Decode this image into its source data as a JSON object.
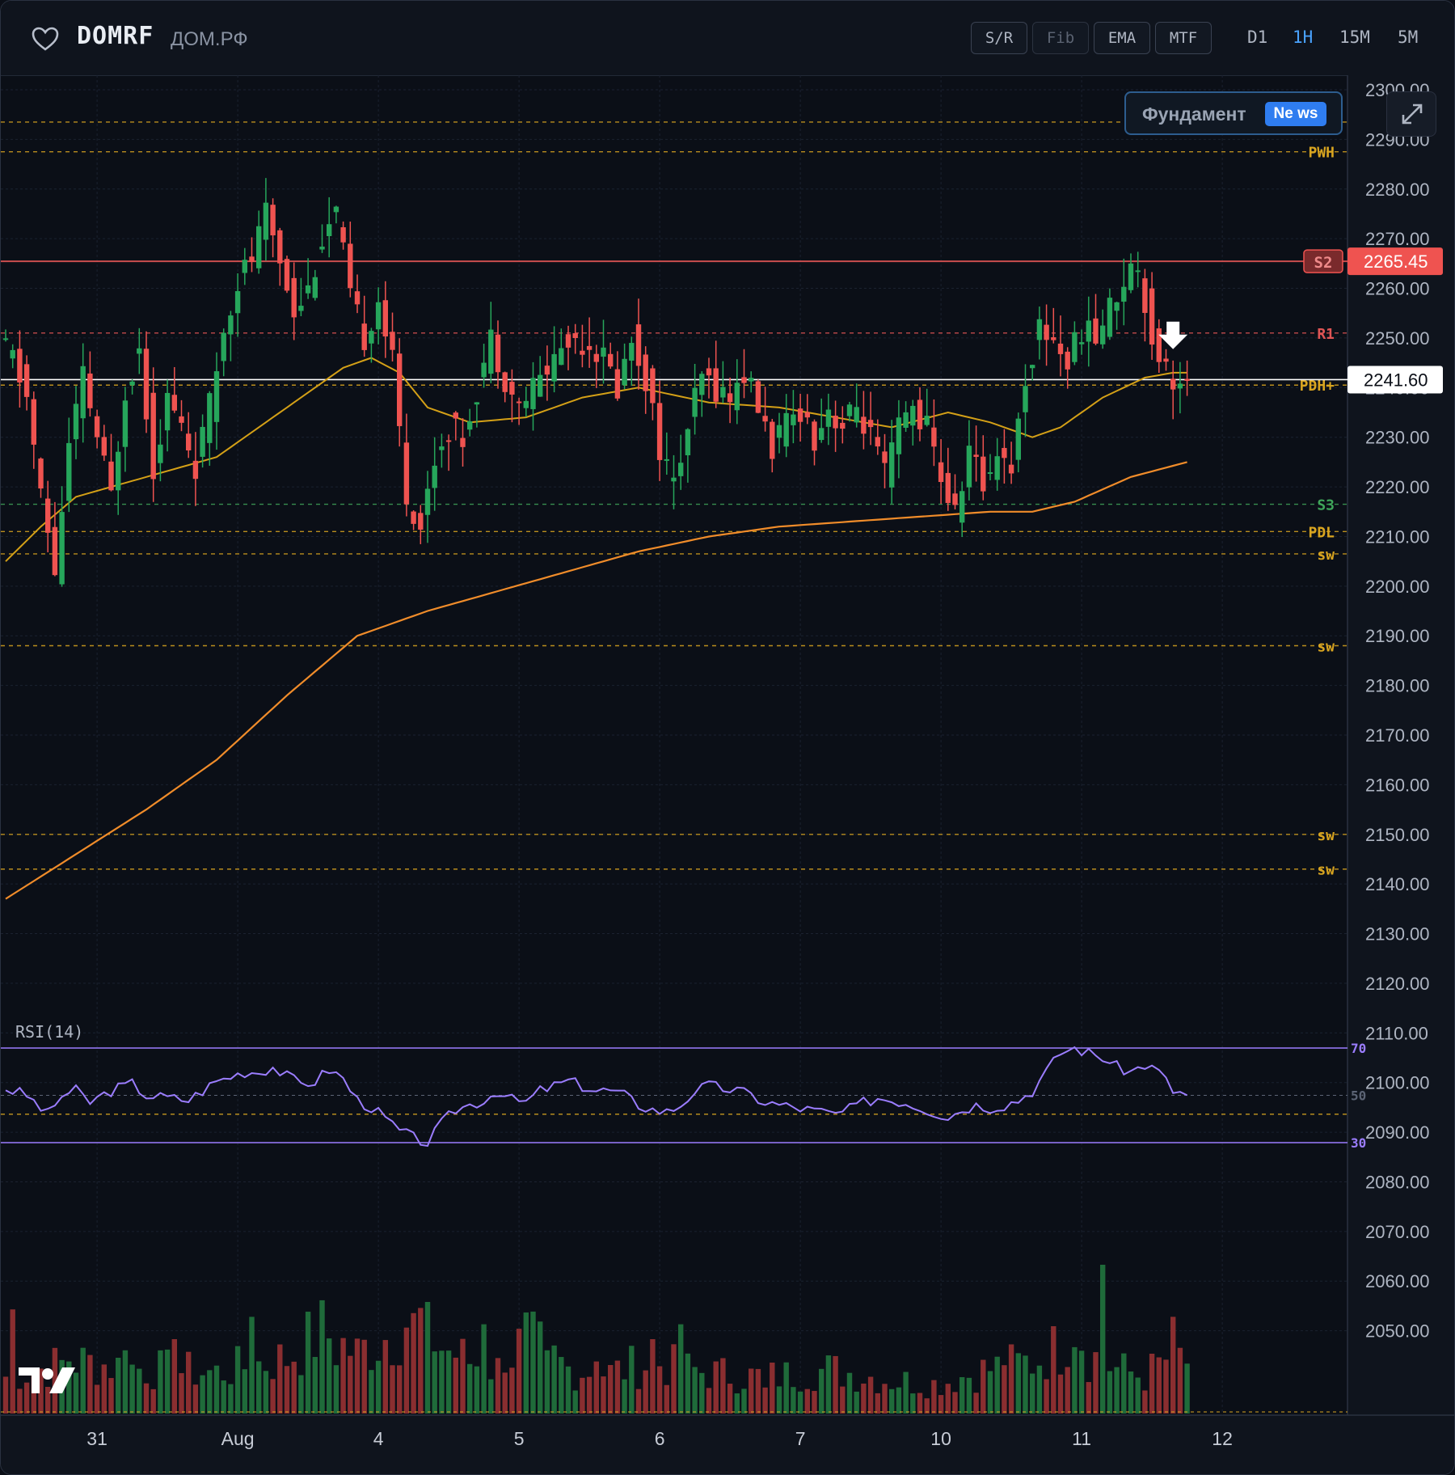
{
  "header": {
    "ticker": "DOMRF",
    "company": "ДОМ.РФ",
    "tools": [
      {
        "label": "S/R",
        "active": true
      },
      {
        "label": "Fib",
        "active": false
      },
      {
        "label": "EMA",
        "active": true
      },
      {
        "label": "MTF",
        "active": true
      }
    ],
    "timeframes": [
      {
        "label": "D1",
        "active": false
      },
      {
        "label": "1H",
        "active": true
      },
      {
        "label": "15M",
        "active": false
      },
      {
        "label": "5M",
        "active": false
      }
    ]
  },
  "overlay": {
    "fundamental_label": "Фундамент",
    "news_badge": "Ne ws"
  },
  "colors": {
    "up": "#26a65b",
    "down": "#ef5350",
    "ema_fast": "#d4a017",
    "ema_slow": "#f08c2a",
    "rsi": "#9b7dff",
    "level_gold": "#d9a520",
    "level_red": "#e05555",
    "level_green": "#3fa65a"
  },
  "chart_data": {
    "type": "candlestick",
    "price_axis": {
      "min": 2040,
      "max": 2300,
      "step": 10,
      "ticks": [
        "2300.00",
        "2290.00",
        "2280.00",
        "2270.00",
        "2260.00",
        "2250.00",
        "2240.00",
        "2230.00",
        "2220.00",
        "2210.00",
        "2200.00",
        "2190.00",
        "2180.00",
        "2170.00",
        "2160.00",
        "2150.00",
        "2140.00",
        "2130.00",
        "2120.00",
        "2110.00",
        "2100.00",
        "2090.00",
        "2080.00",
        "2070.00",
        "2060.00",
        "2050.00"
      ]
    },
    "x_labels": [
      {
        "label": "31",
        "bar": 13
      },
      {
        "label": "Aug",
        "bar": 33
      },
      {
        "label": "4",
        "bar": 53
      },
      {
        "label": "5",
        "bar": 73
      },
      {
        "label": "6",
        "bar": 93
      },
      {
        "label": "7",
        "bar": 113
      },
      {
        "label": "10",
        "bar": 133
      },
      {
        "label": "11",
        "bar": 153
      },
      {
        "label": "12",
        "bar": 173
      }
    ],
    "bar_count": 180,
    "price_labels": [
      {
        "label": "S2",
        "value": 2265.45,
        "color": "#ef5350"
      },
      {
        "label": "2265.45",
        "value": 2265.45,
        "color": "#ef5350"
      },
      {
        "label": "2241.60",
        "value": 2241.6,
        "color": "#ffffff"
      }
    ],
    "levels": [
      {
        "name": "",
        "value": 2293.5,
        "color": "#d9a520"
      },
      {
        "name": "PWH",
        "value": 2287.5,
        "color": "#d9a520"
      },
      {
        "name": "S2",
        "value": 2265.45,
        "color": "#e05555",
        "solid": true
      },
      {
        "name": "R1",
        "value": 2251.0,
        "color": "#e05555"
      },
      {
        "name": "PDH+",
        "value": 2240.5,
        "color": "#d9a520"
      },
      {
        "name": "S3",
        "value": 2216.5,
        "color": "#3fa65a"
      },
      {
        "name": "PDL",
        "value": 2211.0,
        "color": "#d9a520"
      },
      {
        "name": "sw",
        "value": 2206.5,
        "color": "#d9a520"
      },
      {
        "name": "sw",
        "value": 2188.0,
        "color": "#d9a520"
      },
      {
        "name": "sw",
        "value": 2150.0,
        "color": "#d9a520"
      },
      {
        "name": "sw",
        "value": 2143.0,
        "color": "#d9a520"
      }
    ],
    "price_anchors": [
      [
        0,
        2249
      ],
      [
        2,
        2246
      ],
      [
        4,
        2238
      ],
      [
        6,
        2218
      ],
      [
        8,
        2203
      ],
      [
        10,
        2228
      ],
      [
        12,
        2242
      ],
      [
        14,
        2230
      ],
      [
        16,
        2218
      ],
      [
        18,
        2240
      ],
      [
        20,
        2248
      ],
      [
        22,
        2224
      ],
      [
        24,
        2238
      ],
      [
        26,
        2232
      ],
      [
        28,
        2224
      ],
      [
        30,
        2236
      ],
      [
        32,
        2252
      ],
      [
        34,
        2262
      ],
      [
        36,
        2266
      ],
      [
        38,
        2275
      ],
      [
        40,
        2266
      ],
      [
        42,
        2256
      ],
      [
        44,
        2260
      ],
      [
        46,
        2270
      ],
      [
        48,
        2275
      ],
      [
        50,
        2258
      ],
      [
        52,
        2250
      ],
      [
        54,
        2258
      ],
      [
        56,
        2245
      ],
      [
        58,
        2218
      ],
      [
        60,
        2212
      ],
      [
        62,
        2226
      ],
      [
        64,
        2232
      ],
      [
        66,
        2230
      ],
      [
        68,
        2240
      ],
      [
        70,
        2250
      ],
      [
        72,
        2242
      ],
      [
        74,
        2236
      ],
      [
        76,
        2240
      ],
      [
        78,
        2244
      ],
      [
        80,
        2248
      ],
      [
        82,
        2250
      ],
      [
        84,
        2249
      ],
      [
        86,
        2246
      ],
      [
        88,
        2240
      ],
      [
        90,
        2250
      ],
      [
        92,
        2242
      ],
      [
        94,
        2228
      ],
      [
        96,
        2220
      ],
      [
        98,
        2232
      ],
      [
        100,
        2242
      ],
      [
        102,
        2240
      ],
      [
        104,
        2238
      ],
      [
        106,
        2243
      ],
      [
        108,
        2236
      ],
      [
        110,
        2228
      ],
      [
        112,
        2232
      ],
      [
        114,
        2236
      ],
      [
        116,
        2230
      ],
      [
        118,
        2236
      ],
      [
        120,
        2232
      ],
      [
        122,
        2236
      ],
      [
        124,
        2230
      ],
      [
        126,
        2222
      ],
      [
        128,
        2232
      ],
      [
        130,
        2236
      ],
      [
        132,
        2232
      ],
      [
        134,
        2222
      ],
      [
        136,
        2214
      ],
      [
        138,
        2228
      ],
      [
        140,
        2220
      ],
      [
        142,
        2228
      ],
      [
        144,
        2224
      ],
      [
        146,
        2242
      ],
      [
        148,
        2252
      ],
      [
        150,
        2250
      ],
      [
        152,
        2245
      ],
      [
        154,
        2252
      ],
      [
        156,
        2250
      ],
      [
        158,
        2256
      ],
      [
        160,
        2262
      ],
      [
        162,
        2265
      ],
      [
        164,
        2250
      ],
      [
        166,
        2244
      ],
      [
        168,
        2240
      ]
    ],
    "ema_fast_anchors": [
      [
        0,
        2205
      ],
      [
        5,
        2212
      ],
      [
        10,
        2218
      ],
      [
        20,
        2222
      ],
      [
        30,
        2226
      ],
      [
        40,
        2236
      ],
      [
        48,
        2244
      ],
      [
        52,
        2246
      ],
      [
        56,
        2243
      ],
      [
        60,
        2236
      ],
      [
        66,
        2233
      ],
      [
        74,
        2234
      ],
      [
        82,
        2238
      ],
      [
        90,
        2240
      ],
      [
        100,
        2237
      ],
      [
        110,
        2236
      ],
      [
        118,
        2234
      ],
      [
        126,
        2232
      ],
      [
        134,
        2235
      ],
      [
        140,
        2233
      ],
      [
        146,
        2230
      ],
      [
        150,
        2232
      ],
      [
        156,
        2238
      ],
      [
        162,
        2242
      ],
      [
        166,
        2243
      ],
      [
        168,
        2243
      ]
    ],
    "ema_slow_anchors": [
      [
        0,
        2137
      ],
      [
        10,
        2146
      ],
      [
        20,
        2155
      ],
      [
        30,
        2165
      ],
      [
        40,
        2178
      ],
      [
        50,
        2190
      ],
      [
        56,
        2193
      ],
      [
        60,
        2195
      ],
      [
        70,
        2199
      ],
      [
        80,
        2203
      ],
      [
        90,
        2207
      ],
      [
        100,
        2210
      ],
      [
        110,
        2212
      ],
      [
        120,
        2213
      ],
      [
        130,
        2214
      ],
      [
        140,
        2215
      ],
      [
        146,
        2215
      ],
      [
        152,
        2217
      ],
      [
        160,
        2222
      ],
      [
        168,
        2225
      ]
    ],
    "rsi": {
      "label": "RSI(14)",
      "levels": [
        {
          "name": "70",
          "value": 70,
          "color": "#9b7dff"
        },
        {
          "name": "50",
          "value": 50,
          "color": "#5c6475"
        },
        {
          "name": "30",
          "value": 30,
          "color": "#9b7dff"
        }
      ],
      "extra_level": 42,
      "anchors": [
        [
          0,
          53
        ],
        [
          3,
          50
        ],
        [
          6,
          42
        ],
        [
          8,
          50
        ],
        [
          10,
          52
        ],
        [
          12,
          47
        ],
        [
          15,
          52
        ],
        [
          18,
          55
        ],
        [
          20,
          50
        ],
        [
          23,
          49
        ],
        [
          26,
          48
        ],
        [
          28,
          52
        ],
        [
          30,
          56
        ],
        [
          32,
          58
        ],
        [
          34,
          60
        ],
        [
          36,
          60
        ],
        [
          38,
          62
        ],
        [
          40,
          58
        ],
        [
          42,
          55
        ],
        [
          44,
          56
        ],
        [
          46,
          61
        ],
        [
          48,
          57
        ],
        [
          50,
          48
        ],
        [
          52,
          45
        ],
        [
          54,
          40
        ],
        [
          56,
          35
        ],
        [
          58,
          32
        ],
        [
          60,
          30
        ],
        [
          62,
          38
        ],
        [
          64,
          44
        ],
        [
          66,
          46
        ],
        [
          68,
          48
        ],
        [
          70,
          52
        ],
        [
          72,
          48
        ],
        [
          74,
          47
        ],
        [
          76,
          52
        ],
        [
          78,
          54
        ],
        [
          80,
          56
        ],
        [
          82,
          54
        ],
        [
          84,
          52
        ],
        [
          86,
          52
        ],
        [
          88,
          50
        ],
        [
          90,
          46
        ],
        [
          92,
          44
        ],
        [
          94,
          43
        ],
        [
          96,
          46
        ],
        [
          98,
          52
        ],
        [
          100,
          54
        ],
        [
          102,
          53
        ],
        [
          104,
          52
        ],
        [
          106,
          50
        ],
        [
          108,
          47
        ],
        [
          110,
          46
        ],
        [
          112,
          45
        ],
        [
          114,
          44
        ],
        [
          116,
          43
        ],
        [
          118,
          42
        ],
        [
          120,
          44
        ],
        [
          122,
          47
        ],
        [
          124,
          49
        ],
        [
          126,
          48
        ],
        [
          128,
          47
        ],
        [
          130,
          45
        ],
        [
          132,
          43
        ],
        [
          134,
          41
        ],
        [
          136,
          44
        ],
        [
          138,
          46
        ],
        [
          140,
          45
        ],
        [
          142,
          46
        ],
        [
          144,
          48
        ],
        [
          146,
          52
        ],
        [
          148,
          60
        ],
        [
          150,
          68
        ],
        [
          152,
          70
        ],
        [
          154,
          68
        ],
        [
          156,
          66
        ],
        [
          158,
          62
        ],
        [
          160,
          60
        ],
        [
          162,
          63
        ],
        [
          164,
          60
        ],
        [
          166,
          52
        ],
        [
          168,
          50
        ]
      ]
    },
    "volume": {
      "anchors": [
        [
          0,
          10
        ],
        [
          10,
          14
        ],
        [
          20,
          12
        ],
        [
          30,
          11
        ],
        [
          40,
          15
        ],
        [
          45,
          22
        ],
        [
          50,
          16
        ],
        [
          55,
          22
        ],
        [
          58,
          27
        ],
        [
          62,
          18
        ],
        [
          66,
          14
        ],
        [
          70,
          12
        ],
        [
          74,
          20
        ],
        [
          80,
          12
        ],
        [
          86,
          11
        ],
        [
          92,
          14
        ],
        [
          96,
          12
        ],
        [
          100,
          11
        ],
        [
          106,
          10
        ],
        [
          110,
          10
        ],
        [
          116,
          12
        ],
        [
          120,
          11
        ],
        [
          126,
          9
        ],
        [
          132,
          8
        ],
        [
          140,
          12
        ],
        [
          146,
          14
        ],
        [
          150,
          18
        ],
        [
          152,
          26
        ],
        [
          154,
          16
        ],
        [
          158,
          12
        ],
        [
          162,
          10
        ],
        [
          166,
          16
        ],
        [
          168,
          14
        ]
      ],
      "spikes": [
        [
          1,
          28
        ],
        [
          4,
          12
        ],
        [
          9,
          14
        ],
        [
          17,
          17
        ],
        [
          24,
          20
        ],
        [
          35,
          26
        ],
        [
          47,
          13
        ],
        [
          58,
          27
        ],
        [
          60,
          30
        ],
        [
          68,
          24
        ],
        [
          71,
          11
        ],
        [
          77,
          17
        ],
        [
          84,
          14
        ],
        [
          92,
          20
        ],
        [
          96,
          24
        ],
        [
          108,
          7
        ],
        [
          116,
          12
        ],
        [
          134,
          8
        ],
        [
          142,
          13
        ],
        [
          156,
          40
        ],
        [
          166,
          26
        ]
      ]
    }
  }
}
